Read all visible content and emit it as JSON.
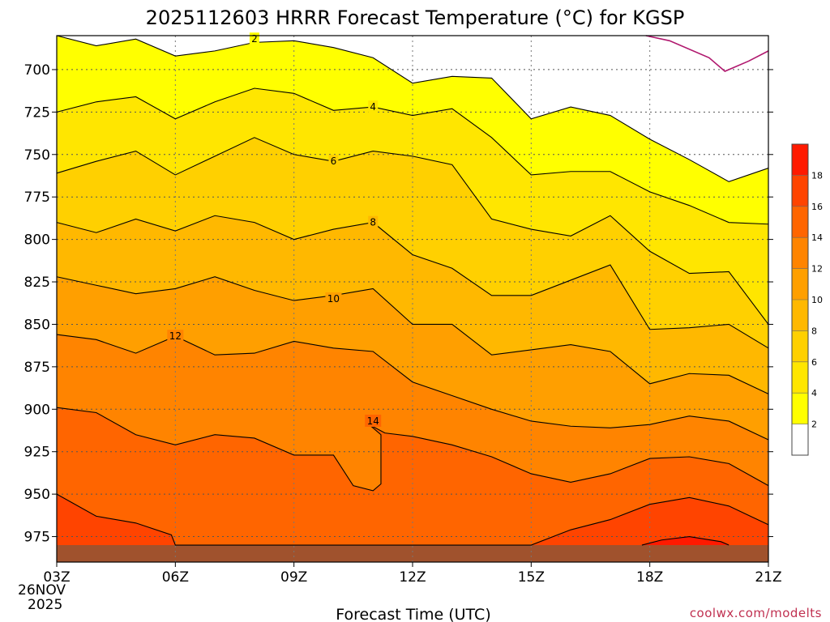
{
  "chart_data": {
    "type": "contour",
    "title": "2025112603 HRRR Forecast Temperature (°C) for KGSP",
    "xlabel": "Forecast Time (UTC)",
    "ylabel": "",
    "credit": "coolwx.com/modelts",
    "x_hours": [
      3,
      21
    ],
    "y_pressure_hPa": [
      680,
      990
    ],
    "x_ticks": [
      {
        "h": 3,
        "label": "03Z"
      },
      {
        "h": 6,
        "label": "06Z"
      },
      {
        "h": 9,
        "label": "09Z"
      },
      {
        "h": 12,
        "label": "12Z"
      },
      {
        "h": 15,
        "label": "15Z"
      },
      {
        "h": 18,
        "label": "18Z"
      },
      {
        "h": 21,
        "label": "21Z"
      }
    ],
    "date_label": [
      "26NOV",
      "2025"
    ],
    "y_ticks": [
      {
        "p": 700,
        "label": "700"
      },
      {
        "p": 725,
        "label": "725"
      },
      {
        "p": 750,
        "label": "750"
      },
      {
        "p": 775,
        "label": "775"
      },
      {
        "p": 800,
        "label": "800"
      },
      {
        "p": 825,
        "label": "825"
      },
      {
        "p": 850,
        "label": "850"
      },
      {
        "p": 875,
        "label": "875"
      },
      {
        "p": 900,
        "label": "900"
      },
      {
        "p": 925,
        "label": "925"
      },
      {
        "p": 950,
        "label": "950"
      },
      {
        "p": 975,
        "label": "975"
      }
    ],
    "colorbar": {
      "levels": [
        {
          "t": 2,
          "color": "#ffffff",
          "label": "2"
        },
        {
          "t": 4,
          "color": "#ffff00",
          "label": "4"
        },
        {
          "t": 6,
          "color": "#ffe600",
          "label": "6"
        },
        {
          "t": 8,
          "color": "#ffd000",
          "label": "8"
        },
        {
          "t": 10,
          "color": "#ffb800",
          "label": "10"
        },
        {
          "t": 12,
          "color": "#ff9f00",
          "label": "12"
        },
        {
          "t": 14,
          "color": "#ff8400",
          "label": "14"
        },
        {
          "t": 16,
          "color": "#ff6500",
          "label": "16"
        },
        {
          "t": 18,
          "color": "#ff4400",
          "label": "18"
        },
        {
          "t": 20,
          "color": "#ff1a00",
          "label": ""
        }
      ]
    },
    "contours": [
      {
        "t": 2,
        "fill": "#ffff00",
        "label": "2",
        "label_at": [
          8,
          682
        ],
        "pts": [
          [
            3,
            680
          ],
          [
            4.0,
            686
          ],
          [
            5.0,
            682
          ],
          [
            6.0,
            692
          ],
          [
            7.0,
            689
          ],
          [
            8.0,
            684
          ],
          [
            9.0,
            683
          ],
          [
            10.0,
            687
          ],
          [
            11.0,
            693
          ],
          [
            12.0,
            708
          ],
          [
            13.0,
            704
          ],
          [
            14.0,
            705
          ],
          [
            15.0,
            729
          ],
          [
            16.0,
            722
          ],
          [
            17.0,
            727
          ],
          [
            18.0,
            741
          ],
          [
            19.0,
            753
          ],
          [
            20.0,
            766
          ],
          [
            21.0,
            758
          ]
        ]
      },
      {
        "t": 4,
        "fill": "#ffe600",
        "label": "4",
        "label_at": [
          11,
          722
        ],
        "pts": [
          [
            3,
            725
          ],
          [
            4.0,
            719
          ],
          [
            5.0,
            716
          ],
          [
            6.0,
            729
          ],
          [
            7.0,
            719
          ],
          [
            8.0,
            711
          ],
          [
            9.0,
            714
          ],
          [
            10.0,
            724
          ],
          [
            11.0,
            722
          ],
          [
            12.0,
            727
          ],
          [
            13.0,
            723
          ],
          [
            14.0,
            740
          ],
          [
            15.0,
            762
          ],
          [
            16.0,
            760
          ],
          [
            17.0,
            760
          ],
          [
            18.0,
            772
          ],
          [
            19.0,
            780
          ],
          [
            20.0,
            790
          ],
          [
            21.0,
            791
          ]
        ]
      },
      {
        "t": 6,
        "fill": "#ffd000",
        "label": "6",
        "label_at": [
          10,
          754
        ],
        "pts": [
          [
            3,
            761
          ],
          [
            4.0,
            754
          ],
          [
            5.0,
            748
          ],
          [
            6.0,
            762
          ],
          [
            7.0,
            751
          ],
          [
            8.0,
            740
          ],
          [
            9.0,
            750
          ],
          [
            10.0,
            754
          ],
          [
            11.0,
            748
          ],
          [
            12.0,
            751
          ],
          [
            13.0,
            756
          ],
          [
            14.0,
            788
          ],
          [
            15.0,
            794
          ],
          [
            16.0,
            798
          ],
          [
            17.0,
            786
          ],
          [
            18.0,
            807
          ],
          [
            19.0,
            820
          ],
          [
            20.0,
            819
          ],
          [
            21.0,
            850
          ]
        ]
      },
      {
        "t": 8,
        "fill": "#ffb800",
        "label": "8",
        "label_at": [
          11,
          790
        ],
        "pts": [
          [
            3,
            790
          ],
          [
            4.0,
            796
          ],
          [
            5.0,
            788
          ],
          [
            6.0,
            795
          ],
          [
            7.0,
            786
          ],
          [
            8.0,
            790
          ],
          [
            9.0,
            800
          ],
          [
            10.0,
            794
          ],
          [
            11.0,
            790
          ],
          [
            12.0,
            809
          ],
          [
            13.0,
            817
          ],
          [
            14.0,
            833
          ],
          [
            15.0,
            833
          ],
          [
            16.0,
            824
          ],
          [
            17.0,
            815
          ],
          [
            18.0,
            853
          ],
          [
            19.0,
            852
          ],
          [
            20.0,
            850
          ],
          [
            21.0,
            864
          ]
        ]
      },
      {
        "t": 10,
        "fill": "#ff9f00",
        "label": "10",
        "label_at": [
          10,
          835
        ],
        "pts": [
          [
            3,
            822
          ],
          [
            4.0,
            827
          ],
          [
            5.0,
            832
          ],
          [
            6.0,
            829
          ],
          [
            7.0,
            822
          ],
          [
            8.0,
            830
          ],
          [
            9.0,
            836
          ],
          [
            10.0,
            833
          ],
          [
            11.0,
            829
          ],
          [
            12.0,
            850
          ],
          [
            13.0,
            850
          ],
          [
            14.0,
            868
          ],
          [
            15.0,
            865
          ],
          [
            16.0,
            862
          ],
          [
            17.0,
            866
          ],
          [
            18.0,
            885
          ],
          [
            19.0,
            879
          ],
          [
            20.0,
            880
          ],
          [
            21.0,
            891
          ]
        ]
      },
      {
        "t": 12,
        "fill": "#ff8400",
        "label": "12",
        "label_at": [
          6,
          857
        ],
        "pts": [
          [
            3,
            856
          ],
          [
            4.0,
            859
          ],
          [
            5.0,
            867
          ],
          [
            6.0,
            857
          ],
          [
            7.0,
            868
          ],
          [
            8.0,
            867
          ],
          [
            9.0,
            860
          ],
          [
            10.0,
            864
          ],
          [
            11.0,
            866
          ],
          [
            12.0,
            884
          ],
          [
            13.0,
            892
          ],
          [
            14.0,
            900
          ],
          [
            15.0,
            907
          ],
          [
            16.0,
            910
          ],
          [
            17.0,
            911
          ],
          [
            18.0,
            909
          ],
          [
            19.0,
            904
          ],
          [
            20.0,
            907
          ],
          [
            21.0,
            918
          ]
        ]
      },
      {
        "t": 14,
        "fill": "#ff6500",
        "label": "14",
        "label_at": [
          11,
          907
        ],
        "pts": [
          [
            3,
            899
          ],
          [
            4.0,
            902
          ],
          [
            5.0,
            915
          ],
          [
            6.0,
            921
          ],
          [
            7.0,
            915
          ],
          [
            8.0,
            917
          ],
          [
            9.0,
            927
          ],
          [
            10.0,
            927
          ],
          [
            10.5,
            945
          ],
          [
            11.0,
            948
          ],
          [
            11.2,
            944
          ],
          [
            11.2,
            915
          ],
          [
            10.9,
            909
          ],
          [
            11.3,
            914
          ],
          [
            12.0,
            916
          ],
          [
            13.0,
            921
          ],
          [
            14.0,
            928
          ],
          [
            15.0,
            938
          ],
          [
            16.0,
            943
          ],
          [
            17.0,
            938
          ],
          [
            18.0,
            929
          ],
          [
            19.0,
            928
          ],
          [
            20.0,
            932
          ],
          [
            21.0,
            945
          ]
        ]
      },
      {
        "t": 16,
        "fill": "#ff4400",
        "label": "",
        "label_at": null,
        "pts": [
          [
            3,
            950
          ],
          [
            4.0,
            963
          ],
          [
            5.0,
            967
          ],
          [
            5.9,
            974
          ],
          [
            6.0,
            980
          ],
          [
            15.0,
            980
          ],
          [
            16.0,
            971
          ],
          [
            17.0,
            965
          ],
          [
            18.0,
            956
          ],
          [
            19.0,
            952
          ],
          [
            20.0,
            957
          ],
          [
            21.0,
            968
          ]
        ]
      },
      {
        "t": 18,
        "fill": "#ff1a00",
        "label": "",
        "label_at": null,
        "pts": [
          [
            17.8,
            980
          ],
          [
            18.3,
            977
          ],
          [
            19.0,
            975
          ],
          [
            19.8,
            978
          ],
          [
            20.0,
            980
          ]
        ]
      }
    ],
    "freezing_line": {
      "t": 0,
      "color": "#b0186e",
      "pts": [
        [
          17.9,
          680
        ],
        [
          18.5,
          683
        ],
        [
          19.5,
          693
        ],
        [
          19.9,
          701
        ],
        [
          20.5,
          695
        ],
        [
          21.0,
          689
        ]
      ]
    },
    "ground": {
      "from_p": 980,
      "color": "#a0522d"
    }
  }
}
